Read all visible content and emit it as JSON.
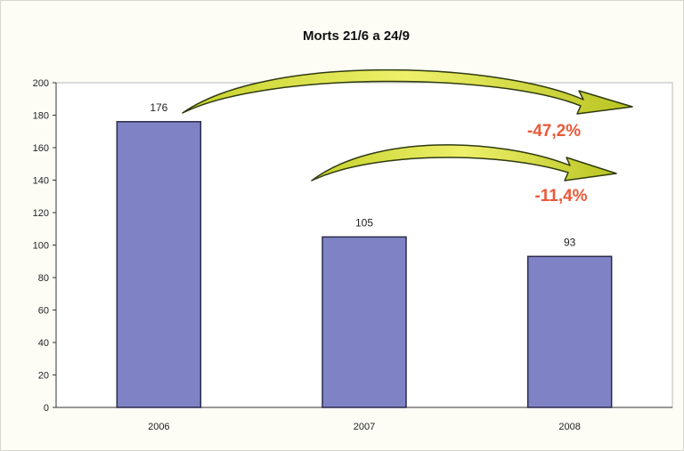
{
  "chart_data": {
    "type": "bar",
    "title": "Morts 21/6 a 24/9",
    "categories": [
      "2006",
      "2007",
      "2008"
    ],
    "series": [
      {
        "values": [
          176,
          105,
          93
        ]
      }
    ],
    "data_labels": [
      "176",
      "105",
      "93"
    ],
    "ylim": [
      0,
      200
    ],
    "yticks": [
      0,
      20,
      40,
      60,
      80,
      100,
      120,
      140,
      160,
      180,
      200
    ],
    "xlabel": "",
    "ylabel": "",
    "grid": false,
    "legend": "none",
    "annotations": [
      {
        "text": "-47,2%",
        "from": "2006",
        "to": "2008"
      },
      {
        "text": "-11,4%",
        "from": "2007",
        "to": "2008"
      }
    ],
    "colors": {
      "bar": "#7f83c6",
      "bar_edge": "#2a2a4a",
      "arrow": "#d7dd3a",
      "arrow_edge": "#2f3a10",
      "annotation": "#e85a3a",
      "plot_bg": "#ffffff",
      "chart_bg": "#fdfdf6"
    }
  }
}
